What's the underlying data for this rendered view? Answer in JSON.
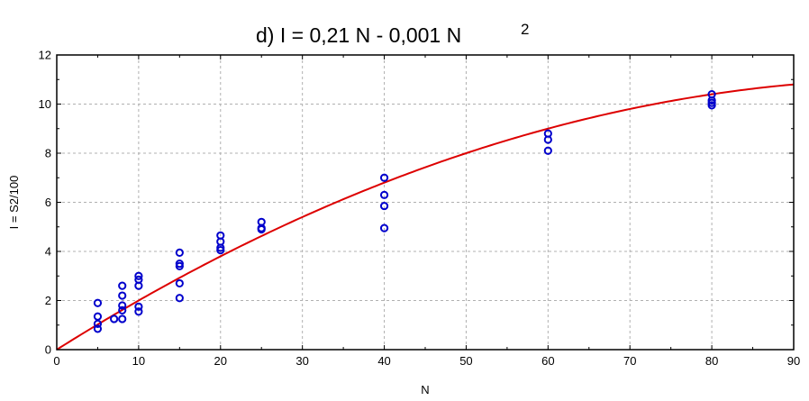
{
  "chart_data": {
    "type": "scatter",
    "title": "d)  I = 0,21 N - 0,001 N",
    "title_superscript": "2",
    "xlabel": "N",
    "ylabel": "I = S2/100",
    "xlim": [
      0,
      90
    ],
    "ylim": [
      0,
      12
    ],
    "x_ticks": [
      "0",
      "10",
      "20",
      "30",
      "40",
      "50",
      "60",
      "70",
      "80",
      "90"
    ],
    "y_ticks": [
      "0",
      "2",
      "4",
      "6",
      "8",
      "10",
      "12"
    ],
    "grid": true,
    "series": [
      {
        "marker": "circle-open",
        "color": "#0000cc",
        "points": [
          [
            5,
            1.9
          ],
          [
            5,
            1.35
          ],
          [
            5,
            1.05
          ],
          [
            5,
            0.85
          ],
          [
            7,
            1.25
          ],
          [
            8,
            2.6
          ],
          [
            8,
            2.2
          ],
          [
            8,
            1.8
          ],
          [
            8,
            1.6
          ],
          [
            8,
            1.25
          ],
          [
            10,
            3.0
          ],
          [
            10,
            2.85
          ],
          [
            10,
            2.6
          ],
          [
            10,
            1.75
          ],
          [
            10,
            1.55
          ],
          [
            15,
            3.95
          ],
          [
            15,
            3.5
          ],
          [
            15,
            3.4
          ],
          [
            15,
            2.7
          ],
          [
            15,
            2.1
          ],
          [
            20,
            4.65
          ],
          [
            20,
            4.4
          ],
          [
            20,
            4.15
          ],
          [
            20,
            4.05
          ],
          [
            25,
            5.2
          ],
          [
            25,
            4.95
          ],
          [
            25,
            4.9
          ],
          [
            40,
            7.0
          ],
          [
            40,
            6.3
          ],
          [
            40,
            5.85
          ],
          [
            40,
            4.95
          ],
          [
            60,
            8.8
          ],
          [
            60,
            8.55
          ],
          [
            60,
            8.1
          ],
          [
            80,
            10.4
          ],
          [
            80,
            10.15
          ],
          [
            80,
            10.05
          ],
          [
            80,
            9.95
          ]
        ]
      },
      {
        "type": "line",
        "color": "#dd0000",
        "equation": {
          "a": 0.21,
          "b": -0.001
        },
        "x_range": [
          0,
          90
        ]
      }
    ]
  }
}
